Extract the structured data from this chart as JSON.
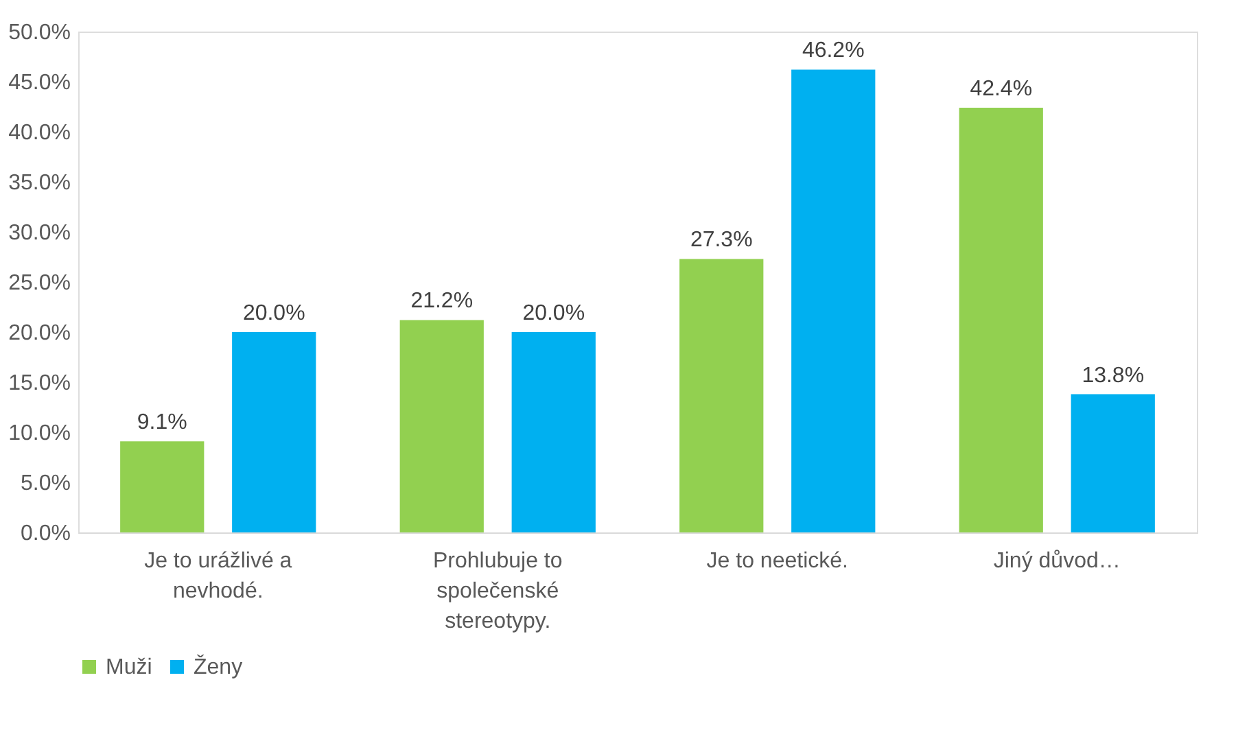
{
  "chart_data": {
    "type": "bar",
    "categories": [
      "Je to urážlivé a nevhodé.",
      "Prohlubuje to společenské stereotypy.",
      "Je to neetické.",
      "Jiný důvod…"
    ],
    "series": [
      {
        "name": "Muži",
        "color": "#92d050",
        "values": [
          9.1,
          21.2,
          27.3,
          42.4
        ],
        "value_labels": [
          "9.1%",
          "21.2%",
          "27.3%",
          "42.4%"
        ]
      },
      {
        "name": "Ženy",
        "color": "#00b0f0",
        "values": [
          20.0,
          20.0,
          46.2,
          13.8
        ],
        "value_labels": [
          "20.0%",
          "20.0%",
          "46.2%",
          "13.8%"
        ]
      }
    ],
    "ylim": [
      0,
      50
    ],
    "yticks": [
      {
        "value": 0,
        "label": "0.0%"
      },
      {
        "value": 5,
        "label": "5.0%"
      },
      {
        "value": 10,
        "label": "10.0%"
      },
      {
        "value": 15,
        "label": "15.0%"
      },
      {
        "value": 20,
        "label": "20.0%"
      },
      {
        "value": 25,
        "label": "25.0%"
      },
      {
        "value": 30,
        "label": "30.0%"
      },
      {
        "value": 35,
        "label": "35.0%"
      },
      {
        "value": 40,
        "label": "40.0%"
      },
      {
        "value": 45,
        "label": "45.0%"
      },
      {
        "value": 50,
        "label": "50.0%"
      }
    ],
    "grid": false,
    "legend": "bottom"
  }
}
